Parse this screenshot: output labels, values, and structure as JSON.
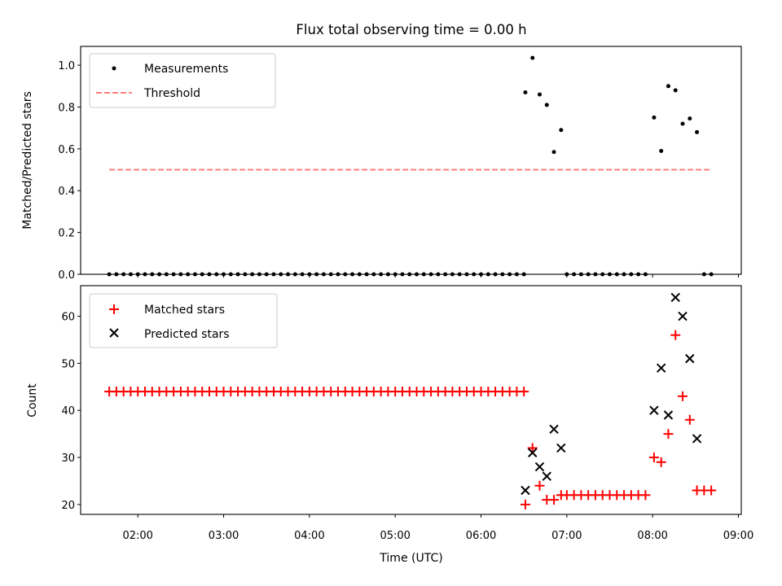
{
  "title": "Flux total observing time = 0.00 h",
  "chart_data": [
    {
      "type": "scatter",
      "panel": "top",
      "ylabel": "Matched/Predicted stars",
      "ylim": [
        0,
        1.09
      ],
      "yticks": [
        "0.0",
        "0.2",
        "0.4",
        "0.6",
        "0.8",
        "1.0"
      ],
      "yticks_values": [
        0,
        0.2,
        0.4,
        0.6,
        0.8,
        1.0
      ],
      "legend_placement": "upper-left",
      "series": [
        {
          "name": "Measurements",
          "marker": "dot",
          "color": "#000000",
          "points": [
            [
              "01:40",
              0
            ],
            [
              "01:45",
              0
            ],
            [
              "01:50",
              0
            ],
            [
              "01:55",
              0
            ],
            [
              "02:00",
              0
            ],
            [
              "02:05",
              0
            ],
            [
              "02:10",
              0
            ],
            [
              "02:15",
              0
            ],
            [
              "02:20",
              0
            ],
            [
              "02:25",
              0
            ],
            [
              "02:30",
              0
            ],
            [
              "02:35",
              0
            ],
            [
              "02:40",
              0
            ],
            [
              "02:45",
              0
            ],
            [
              "02:50",
              0
            ],
            [
              "02:55",
              0
            ],
            [
              "03:00",
              0
            ],
            [
              "03:05",
              0
            ],
            [
              "03:10",
              0
            ],
            [
              "03:15",
              0
            ],
            [
              "03:20",
              0
            ],
            [
              "03:25",
              0
            ],
            [
              "03:30",
              0
            ],
            [
              "03:35",
              0
            ],
            [
              "03:40",
              0
            ],
            [
              "03:45",
              0
            ],
            [
              "03:50",
              0
            ],
            [
              "03:55",
              0
            ],
            [
              "04:00",
              0
            ],
            [
              "04:05",
              0
            ],
            [
              "04:10",
              0
            ],
            [
              "04:15",
              0
            ],
            [
              "04:20",
              0
            ],
            [
              "04:25",
              0
            ],
            [
              "04:30",
              0
            ],
            [
              "04:35",
              0
            ],
            [
              "04:40",
              0
            ],
            [
              "04:45",
              0
            ],
            [
              "04:50",
              0
            ],
            [
              "04:55",
              0
            ],
            [
              "05:00",
              0
            ],
            [
              "05:05",
              0
            ],
            [
              "05:10",
              0
            ],
            [
              "05:15",
              0
            ],
            [
              "05:20",
              0
            ],
            [
              "05:25",
              0
            ],
            [
              "05:30",
              0
            ],
            [
              "05:35",
              0
            ],
            [
              "05:40",
              0
            ],
            [
              "05:45",
              0
            ],
            [
              "05:50",
              0
            ],
            [
              "05:55",
              0
            ],
            [
              "06:00",
              0
            ],
            [
              "06:05",
              0
            ],
            [
              "06:10",
              0
            ],
            [
              "06:15",
              0
            ],
            [
              "06:20",
              0
            ],
            [
              "06:25",
              0
            ],
            [
              "06:30",
              0
            ],
            [
              "06:31",
              0.87
            ],
            [
              "06:36",
              1.035
            ],
            [
              "06:41",
              0.86
            ],
            [
              "06:46",
              0.81
            ],
            [
              "06:51",
              0.585
            ],
            [
              "06:56",
              0.69
            ],
            [
              "07:00",
              0
            ],
            [
              "07:05",
              0
            ],
            [
              "07:10",
              0
            ],
            [
              "07:15",
              0
            ],
            [
              "07:20",
              0
            ],
            [
              "07:25",
              0
            ],
            [
              "07:30",
              0
            ],
            [
              "07:35",
              0
            ],
            [
              "07:40",
              0
            ],
            [
              "07:45",
              0
            ],
            [
              "07:50",
              0
            ],
            [
              "07:55",
              0
            ],
            [
              "08:01",
              0.75
            ],
            [
              "08:06",
              0.59
            ],
            [
              "08:11",
              0.9
            ],
            [
              "08:16",
              0.88
            ],
            [
              "08:21",
              0.72
            ],
            [
              "08:26",
              0.745
            ],
            [
              "08:31",
              0.68
            ],
            [
              "08:36",
              0
            ],
            [
              "08:41",
              0
            ]
          ]
        },
        {
          "name": "Threshold",
          "style": "dashed-line",
          "color": "#ff7f7f",
          "points": [
            [
              "01:40",
              0.5
            ],
            [
              "08:41",
              0.5
            ]
          ]
        }
      ]
    },
    {
      "type": "scatter",
      "panel": "bottom",
      "xlabel": "Time (UTC)",
      "ylabel": "Count",
      "ylim": [
        17.9,
        66.5
      ],
      "yticks": [
        "20",
        "30",
        "40",
        "50",
        "60"
      ],
      "yticks_values": [
        20,
        30,
        40,
        50,
        60
      ],
      "xticks": [
        "02:00",
        "03:00",
        "04:00",
        "05:00",
        "06:00",
        "07:00",
        "08:00",
        "09:00"
      ],
      "xlim": [
        "01:20",
        "09:02"
      ],
      "legend_placement": "upper-left",
      "series": [
        {
          "name": "Matched stars",
          "marker": "plus",
          "color": "#ff0000",
          "points": [
            [
              "01:40",
              44
            ],
            [
              "01:45",
              44
            ],
            [
              "01:50",
              44
            ],
            [
              "01:55",
              44
            ],
            [
              "02:00",
              44
            ],
            [
              "02:05",
              44
            ],
            [
              "02:10",
              44
            ],
            [
              "02:15",
              44
            ],
            [
              "02:20",
              44
            ],
            [
              "02:25",
              44
            ],
            [
              "02:30",
              44
            ],
            [
              "02:35",
              44
            ],
            [
              "02:40",
              44
            ],
            [
              "02:45",
              44
            ],
            [
              "02:50",
              44
            ],
            [
              "02:55",
              44
            ],
            [
              "03:00",
              44
            ],
            [
              "03:05",
              44
            ],
            [
              "03:10",
              44
            ],
            [
              "03:15",
              44
            ],
            [
              "03:20",
              44
            ],
            [
              "03:25",
              44
            ],
            [
              "03:30",
              44
            ],
            [
              "03:35",
              44
            ],
            [
              "03:40",
              44
            ],
            [
              "03:45",
              44
            ],
            [
              "03:50",
              44
            ],
            [
              "03:55",
              44
            ],
            [
              "04:00",
              44
            ],
            [
              "04:05",
              44
            ],
            [
              "04:10",
              44
            ],
            [
              "04:15",
              44
            ],
            [
              "04:20",
              44
            ],
            [
              "04:25",
              44
            ],
            [
              "04:30",
              44
            ],
            [
              "04:35",
              44
            ],
            [
              "04:40",
              44
            ],
            [
              "04:45",
              44
            ],
            [
              "04:50",
              44
            ],
            [
              "04:55",
              44
            ],
            [
              "05:00",
              44
            ],
            [
              "05:05",
              44
            ],
            [
              "05:10",
              44
            ],
            [
              "05:15",
              44
            ],
            [
              "05:20",
              44
            ],
            [
              "05:25",
              44
            ],
            [
              "05:30",
              44
            ],
            [
              "05:35",
              44
            ],
            [
              "05:40",
              44
            ],
            [
              "05:45",
              44
            ],
            [
              "05:50",
              44
            ],
            [
              "05:55",
              44
            ],
            [
              "06:00",
              44
            ],
            [
              "06:05",
              44
            ],
            [
              "06:10",
              44
            ],
            [
              "06:15",
              44
            ],
            [
              "06:20",
              44
            ],
            [
              "06:25",
              44
            ],
            [
              "06:30",
              44
            ],
            [
              "06:31",
              20
            ],
            [
              "06:36",
              32
            ],
            [
              "06:41",
              24
            ],
            [
              "06:46",
              21
            ],
            [
              "06:51",
              21
            ],
            [
              "06:56",
              22
            ],
            [
              "07:00",
              22
            ],
            [
              "07:05",
              22
            ],
            [
              "07:10",
              22
            ],
            [
              "07:15",
              22
            ],
            [
              "07:20",
              22
            ],
            [
              "07:25",
              22
            ],
            [
              "07:30",
              22
            ],
            [
              "07:35",
              22
            ],
            [
              "07:40",
              22
            ],
            [
              "07:45",
              22
            ],
            [
              "07:50",
              22
            ],
            [
              "07:55",
              22
            ],
            [
              "08:01",
              30
            ],
            [
              "08:06",
              29
            ],
            [
              "08:11",
              35
            ],
            [
              "08:16",
              56
            ],
            [
              "08:21",
              43
            ],
            [
              "08:26",
              38
            ],
            [
              "08:31",
              23
            ],
            [
              "08:36",
              23
            ],
            [
              "08:41",
              23
            ]
          ]
        },
        {
          "name": "Predicted stars",
          "marker": "x",
          "color": "#000000",
          "points": [
            [
              "06:31",
              23
            ],
            [
              "06:36",
              31
            ],
            [
              "06:41",
              28
            ],
            [
              "06:46",
              26
            ],
            [
              "06:51",
              36
            ],
            [
              "06:56",
              32
            ],
            [
              "08:01",
              40
            ],
            [
              "08:06",
              49
            ],
            [
              "08:11",
              39
            ],
            [
              "08:16",
              64
            ],
            [
              "08:21",
              60
            ],
            [
              "08:26",
              51
            ],
            [
              "08:31",
              34
            ]
          ]
        }
      ]
    }
  ]
}
